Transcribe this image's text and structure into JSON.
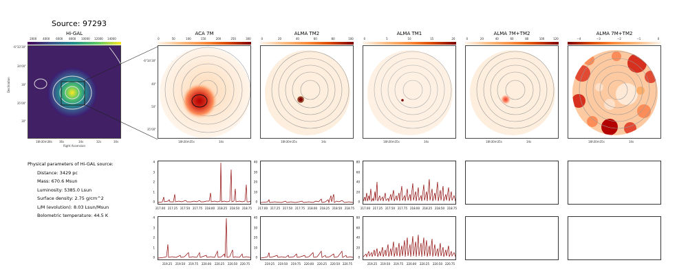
{
  "figure": {
    "title": "Source: 97293"
  },
  "panels": {
    "higal": {
      "title": "Hi-GAL",
      "cbar_ticks": [
        "2000",
        "4000",
        "6000",
        "8000",
        "10000",
        "12000",
        "14000"
      ],
      "y_ticks": [
        "-6°33'30\"",
        "34'00\"",
        "30\"",
        "35'00\"",
        "30\""
      ],
      "x_ticks": [
        "18h30m38s",
        "36s",
        "34s",
        "32s",
        "30s"
      ],
      "xlabel": "Right Ascension",
      "ylabel": "Declination"
    },
    "aca7m": {
      "title": "ACA 7M",
      "cbar_ticks": [
        "0",
        "50",
        "100",
        "150",
        "200",
        "250",
        "300"
      ],
      "y_ticks": [
        "-6°34'30\"",
        "40\"",
        "50\"",
        "35'00\""
      ],
      "x_ticks": [
        "18h30m35s",
        "34s"
      ]
    },
    "almatm2": {
      "title": "ALMA TM2",
      "cbar_ticks": [
        "0",
        "20",
        "40",
        "60",
        "80",
        "100"
      ],
      "x_ticks": [
        "18h30m35s",
        "34s"
      ]
    },
    "almatm1": {
      "title": "ALMA TM1",
      "cbar_ticks": [
        "0",
        "5",
        "10",
        "15",
        "20"
      ],
      "x_ticks": [
        "18h30m35s",
        "34s"
      ]
    },
    "alma7mtm2": {
      "title": "ALMA 7M+TM2",
      "cbar_ticks": [
        "0",
        "20",
        "40",
        "60",
        "80",
        "100",
        "120"
      ],
      "x_ticks": [
        "18h30m35s",
        "34s"
      ]
    },
    "alma7mtm2b": {
      "title": "ALMA 7M+TM2",
      "cbar_ticks": [
        "−4",
        "−3",
        "−2",
        "−1",
        "0"
      ],
      "x_ticks": [
        "18h30m35s",
        "34s"
      ]
    }
  },
  "params": {
    "header": "Physical parameters of Hi-GAL source:",
    "lines": [
      "Distance: 3429 pc",
      "Mass: 670.6 Msun",
      "Luminosity: 5385.0 Lsun",
      "Surface density: 2.75 g/cm^2",
      "L/M (evolution): 8.03 Lsun/Msun",
      "Bolometric temperature: 44.5 K"
    ]
  },
  "spectra": {
    "row1_xticks": [
      "217.00",
      "217.25",
      "217.50",
      "217.75",
      "218.00",
      "218.25",
      "218.50",
      "218.75"
    ],
    "row2_xticks": [
      "219.25",
      "219.50",
      "219.75",
      "220.00",
      "220.25",
      "220.50",
      "220.75"
    ],
    "p1_yticks": [
      "4",
      "3",
      "2",
      "1",
      "0"
    ],
    "p2_yticks": [
      "40",
      "30",
      "20",
      "10",
      "0"
    ],
    "p3_yticks": [
      "80",
      "60",
      "40",
      "20",
      "0"
    ],
    "line_color": "#8b0000"
  }
}
